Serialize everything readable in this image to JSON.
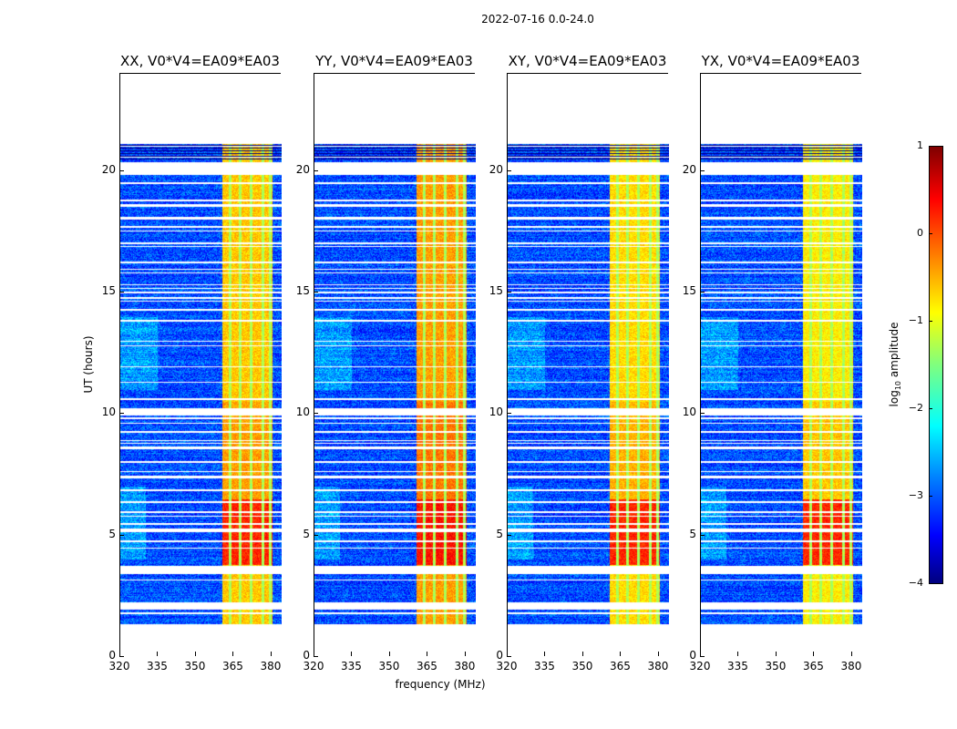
{
  "chart_data": {
    "type": "heatmap",
    "suptitle": "2022-07-16 0.0-24.0",
    "xlabel": "frequency (MHz)",
    "ylabel": "UT (hours)",
    "xlim": [
      320,
      384
    ],
    "ylim": [
      0,
      24
    ],
    "xticks": [
      320,
      335,
      350,
      365,
      380
    ],
    "yticks": [
      0,
      5,
      10,
      15,
      20
    ],
    "panels": [
      {
        "title": "XX, V0*V4=EA09*EA03",
        "band_level": -0.6,
        "strong_level": 0.2
      },
      {
        "title": "YY, V0*V4=EA09*EA03",
        "band_level": -0.4,
        "strong_level": 0.3
      },
      {
        "title": "XY, V0*V4=EA09*EA03",
        "band_level": -0.7,
        "strong_level": 0.2
      },
      {
        "title": "YX, V0*V4=EA09*EA03",
        "band_level": -0.8,
        "strong_level": 0.2
      }
    ],
    "data_hours": [
      1.35,
      21.1
    ],
    "background_level": -3.0,
    "rfi_band_MHz": [
      360.5,
      380.5
    ],
    "strong_rfi_hours": [
      3.8,
      6.5
    ],
    "gaps_hours": [
      [
        1.95,
        2.25
      ],
      [
        3.4,
        3.75
      ],
      [
        5.15,
        5.3
      ],
      [
        9.95,
        10.25
      ],
      [
        19.85,
        20.35
      ]
    ],
    "colorbar": {
      "label": "log10 amplitude",
      "label_main": "log",
      "label_sub": "10",
      "label_rest": " amplitude",
      "range": [
        -4,
        1
      ],
      "ticks": [
        "1",
        "0",
        "−1",
        "−2",
        "−3",
        "−4"
      ],
      "colormap": "jet"
    }
  }
}
